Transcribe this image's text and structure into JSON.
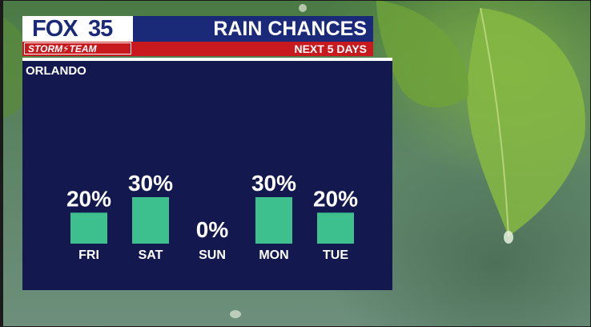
{
  "header": {
    "logo_text": "FOX",
    "logo_number": "35",
    "storm_team": "STORM⚡TEAM",
    "title": "RAIN CHANCES",
    "subtitle": "NEXT 5 DAYS"
  },
  "location": "ORLANDO",
  "colors": {
    "bar": "#3dbf8e",
    "panel": "#13194f",
    "brand_blue": "#1b2a78",
    "brand_red": "#c8191f"
  },
  "chart_data": {
    "type": "bar",
    "title": "RAIN CHANCES",
    "categories": [
      "FRI",
      "SAT",
      "SUN",
      "MON",
      "TUE"
    ],
    "values": [
      20,
      30,
      0,
      30,
      20
    ],
    "value_labels": [
      "20%",
      "30%",
      "0%",
      "30%",
      "20%"
    ],
    "ylim": [
      0,
      30
    ],
    "grid": false
  }
}
